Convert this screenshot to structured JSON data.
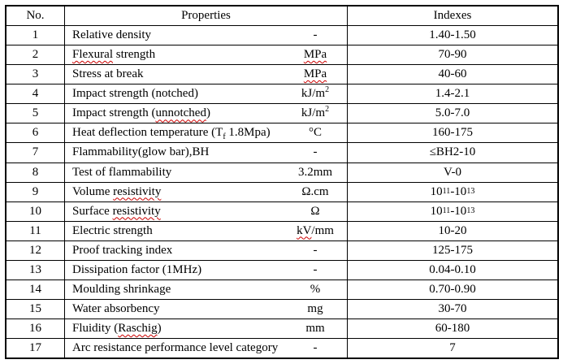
{
  "table": {
    "border_color": "#000000",
    "text_color": "#000000",
    "spellcheck_underline_color": "#cc0000",
    "headers": {
      "no": "No.",
      "properties": "Properties",
      "indexes": "Indexes"
    },
    "rows": [
      {
        "no": "1",
        "property": [
          {
            "t": "Relative density"
          }
        ],
        "unit": [
          {
            "t": "-"
          }
        ],
        "index": [
          {
            "t": "1.40-1.50"
          }
        ]
      },
      {
        "no": "2",
        "property": [
          {
            "t": "Flexural",
            "w": true
          },
          {
            "t": " strength"
          }
        ],
        "unit": [
          {
            "t": "MPa",
            "w": true
          }
        ],
        "index": [
          {
            "t": "70-90"
          }
        ]
      },
      {
        "no": "3",
        "property": [
          {
            "t": "Stress at break"
          }
        ],
        "unit": [
          {
            "t": "MPa",
            "w": true
          }
        ],
        "index": [
          {
            "t": "40-60"
          }
        ]
      },
      {
        "no": "4",
        "property": [
          {
            "t": "Impact strength (notched)"
          }
        ],
        "unit": [
          {
            "t": "kJ/m"
          },
          {
            "t": "2",
            "sup": true
          }
        ],
        "index": [
          {
            "t": "1.4-2.1"
          }
        ]
      },
      {
        "no": "5",
        "property": [
          {
            "t": "Impact strength ("
          },
          {
            "t": "unnotched",
            "w": true
          },
          {
            "t": ")"
          }
        ],
        "unit": [
          {
            "t": "kJ/m"
          },
          {
            "t": "2",
            "sup": true
          }
        ],
        "index": [
          {
            "t": "5.0-7.0"
          }
        ]
      },
      {
        "no": "6",
        "property": [
          {
            "t": "Heat deflection temperature (T"
          },
          {
            "t": "f",
            "sub": true,
            "w": true
          },
          {
            "t": " 1.8Mpa)"
          }
        ],
        "unit": [
          {
            "t": "°C"
          }
        ],
        "index": [
          {
            "t": "160-175"
          }
        ]
      },
      {
        "no": "7",
        "property": [
          {
            "t": "Flammability(glow bar),BH"
          }
        ],
        "unit": [
          {
            "t": "-"
          }
        ],
        "index": [
          {
            "t": "≤BH2-10"
          }
        ]
      },
      {
        "no": "8",
        "property": [
          {
            "t": "Test of flammability"
          }
        ],
        "unit": [
          {
            "t": "3.2mm"
          }
        ],
        "index": [
          {
            "t": "V-0"
          }
        ]
      },
      {
        "no": "9",
        "property": [
          {
            "t": "Volume "
          },
          {
            "t": "resistivity",
            "w": true
          }
        ],
        "unit": [
          {
            "t": "Ω.cm"
          }
        ],
        "index": [
          {
            "t": "10"
          },
          {
            "t": "11",
            "sup": true
          },
          {
            "t": "-10"
          },
          {
            "t": "13",
            "sup": true
          }
        ]
      },
      {
        "no": "10",
        "property": [
          {
            "t": "Surface "
          },
          {
            "t": "resistivity",
            "w": true
          }
        ],
        "unit": [
          {
            "t": "Ω"
          }
        ],
        "index": [
          {
            "t": "10"
          },
          {
            "t": "11",
            "sup": true
          },
          {
            "t": "-10"
          },
          {
            "t": "13",
            "sup": true
          }
        ]
      },
      {
        "no": "11",
        "property": [
          {
            "t": "Electric strength"
          }
        ],
        "unit": [
          {
            "t": "kV",
            "w": true
          },
          {
            "t": "/mm"
          }
        ],
        "index": [
          {
            "t": "10-20"
          }
        ]
      },
      {
        "no": "12",
        "property": [
          {
            "t": "Proof tracking index"
          }
        ],
        "unit": [
          {
            "t": "-"
          }
        ],
        "index": [
          {
            "t": "125-175"
          }
        ]
      },
      {
        "no": "13",
        "property": [
          {
            "t": "Dissipation factor (1MHz)"
          }
        ],
        "unit": [
          {
            "t": "-"
          }
        ],
        "index": [
          {
            "t": "0.04-0.10"
          }
        ]
      },
      {
        "no": "14",
        "property": [
          {
            "t": "Moulding shrinkage"
          }
        ],
        "unit": [
          {
            "t": "%"
          }
        ],
        "index": [
          {
            "t": "0.70-0.90"
          }
        ]
      },
      {
        "no": "15",
        "property": [
          {
            "t": "Water absorbency"
          }
        ],
        "unit": [
          {
            "t": "mg"
          }
        ],
        "index": [
          {
            "t": "30-70"
          }
        ]
      },
      {
        "no": "16",
        "property": [
          {
            "t": "Fluidity ("
          },
          {
            "t": "Raschig",
            "w": true
          },
          {
            "t": ")"
          }
        ],
        "unit": [
          {
            "t": "mm"
          }
        ],
        "index": [
          {
            "t": "60-180"
          }
        ]
      },
      {
        "no": "17",
        "property": [
          {
            "t": "Arc resistance performance level category"
          }
        ],
        "unit": [
          {
            "t": "-"
          }
        ],
        "index": [
          {
            "t": "7"
          }
        ]
      }
    ]
  }
}
